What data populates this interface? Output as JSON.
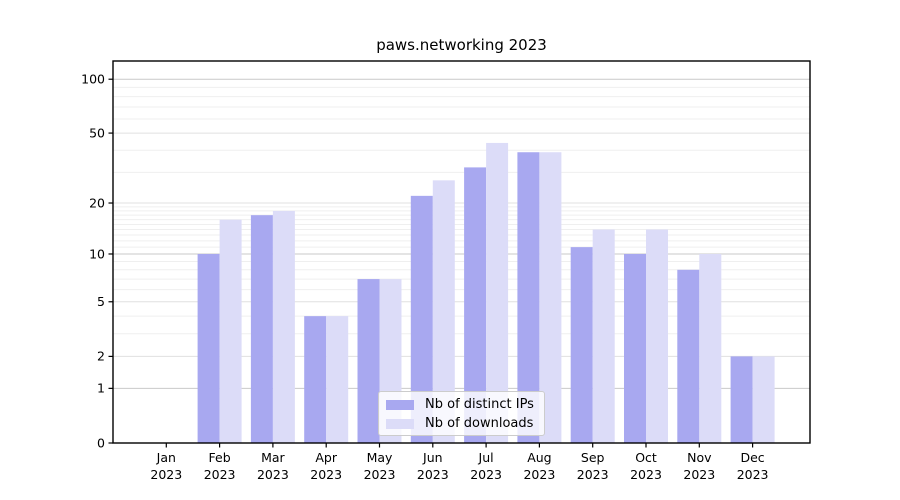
{
  "chart_data": {
    "type": "bar",
    "title": "paws.networking 2023",
    "categories": [
      "Jan",
      "Feb",
      "Mar",
      "Apr",
      "May",
      "Jun",
      "Jul",
      "Aug",
      "Sep",
      "Oct",
      "Nov",
      "Dec"
    ],
    "year": "2023",
    "series": [
      {
        "name": "Nb of distinct IPs",
        "color": "#a8a8f0",
        "values": [
          0,
          10,
          17,
          4,
          7,
          22,
          32,
          39,
          11,
          10,
          8,
          2
        ]
      },
      {
        "name": "Nb of downloads",
        "color": "#dcdcf8",
        "values": [
          0,
          16,
          18,
          4,
          7,
          27,
          44,
          39,
          14,
          14,
          10,
          2
        ]
      }
    ],
    "yscale": "log10(value+1)",
    "yticks": [
      0,
      1,
      2,
      5,
      10,
      20,
      50,
      100
    ],
    "minor_gridlines": [
      3,
      4,
      6,
      7,
      8,
      9,
      11,
      12,
      13,
      14,
      15,
      16,
      17,
      18,
      19,
      30,
      40,
      60,
      70,
      80,
      90
    ],
    "ylim": [
      0,
      126
    ],
    "grid": "horizontal",
    "legend_position": "bottom-center-inside"
  },
  "colors": {
    "bar_dark": "#a8a8f0",
    "bar_light": "#dcdcf8",
    "major_grid": "#c9c9c9",
    "tick_grid": "#e0e0e0",
    "minor_grid": "#efefef",
    "frame": "#000000",
    "text": "#000000",
    "legend_border": "#cccccc",
    "legend_bg": "rgba(255,255,255,0.8)"
  }
}
